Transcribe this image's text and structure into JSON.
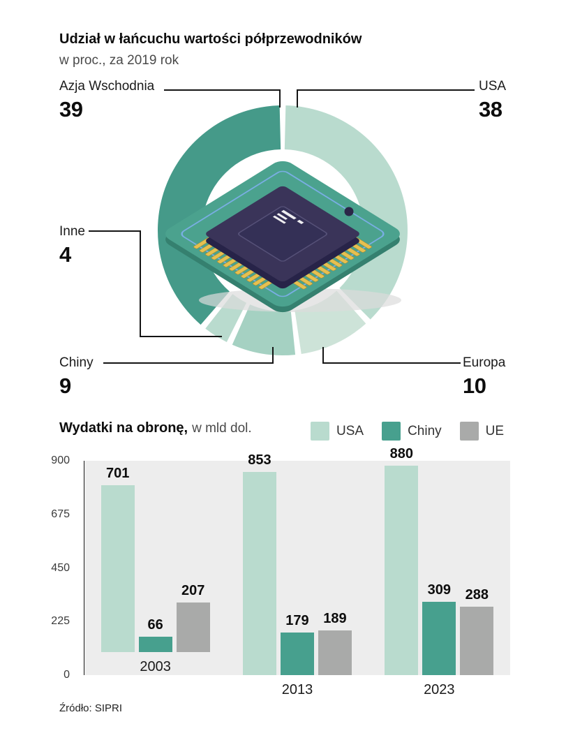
{
  "header": {
    "title": "Udział w łańcuchu wartości półprzewodników",
    "subtitle": "w proc., za 2019 rok"
  },
  "donut": {
    "callouts": [
      {
        "id": "azja",
        "label": "Azja Wschodnia",
        "value": "39"
      },
      {
        "id": "usa",
        "label": "USA",
        "value": "38"
      },
      {
        "id": "inne",
        "label": "Inne",
        "value": "4"
      },
      {
        "id": "chiny",
        "label": "Chiny",
        "value": "9"
      },
      {
        "id": "europa",
        "label": "Europa",
        "value": "10"
      }
    ]
  },
  "bars": {
    "title": "Wydatki na obronę,",
    "unit_label": "w mld dol.",
    "legend": [
      {
        "label": "USA",
        "color": "#b9dbce"
      },
      {
        "label": "Chiny",
        "color": "#47a08e"
      },
      {
        "label": "UE",
        "color": "#a9aaa9"
      }
    ]
  },
  "source": "Źródło: SIPRI",
  "chart_data": [
    {
      "type": "pie",
      "title": "Udział w łańcuchu wartości półprzewodników",
      "subtitle": "w proc., za 2019 rok",
      "start": "top",
      "direction": "clockwise",
      "segments": [
        {
          "label": "USA",
          "value": 38,
          "color": "#b9dbce"
        },
        {
          "label": "Europa",
          "value": 10,
          "color": "#cde3d8"
        },
        {
          "label": "Chiny",
          "value": 9,
          "color": "#a5d1c2"
        },
        {
          "label": "Inne",
          "value": 4,
          "color": "#b9dbce"
        },
        {
          "label": "Azja Wschodnia",
          "value": 39,
          "color": "#459a89"
        }
      ]
    },
    {
      "type": "bar",
      "title": "Wydatki na obronę",
      "subtitle": "w mld dol.",
      "categories": [
        "2003",
        "2013",
        "2023"
      ],
      "series": [
        {
          "name": "USA",
          "color": "#b9dbce",
          "values": [
            701,
            853,
            880
          ]
        },
        {
          "name": "Chiny",
          "color": "#47a08e",
          "values": [
            66,
            179,
            309
          ]
        },
        {
          "name": "UE",
          "color": "#a9aaa9",
          "values": [
            207,
            189,
            288
          ]
        }
      ],
      "yticks": [
        0,
        225,
        450,
        675,
        900
      ],
      "ylim": [
        0,
        900
      ],
      "legend_position": "top-right",
      "source": "Źródło: SIPRI"
    }
  ]
}
